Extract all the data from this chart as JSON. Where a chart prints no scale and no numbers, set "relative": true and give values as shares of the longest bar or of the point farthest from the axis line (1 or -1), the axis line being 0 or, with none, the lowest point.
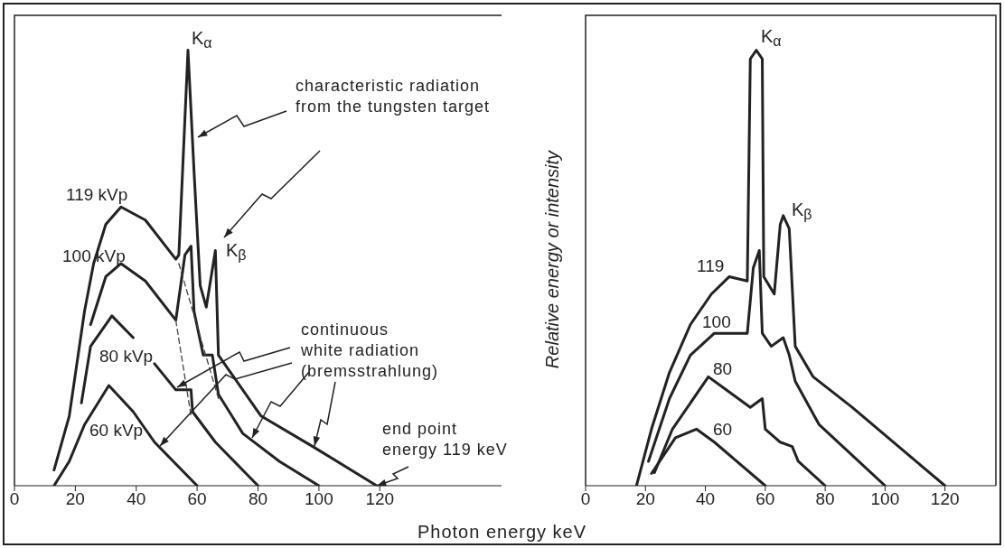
{
  "chart_data": [
    {
      "type": "line",
      "relative": true,
      "xlabel": "Photon energy keV",
      "xlim": [
        0,
        160
      ],
      "xticks": [
        0,
        20,
        40,
        60,
        80,
        100,
        120
      ],
      "series": [
        {
          "name": "119 kVp",
          "color": "#222222",
          "x": [
            13,
            18,
            23,
            26,
            30,
            35,
            43,
            53,
            54,
            57,
            59,
            61,
            63,
            66,
            67,
            71,
            81,
            98,
            119
          ],
          "values": [
            0.036,
            0.16,
            0.4,
            0.51,
            0.6,
            0.64,
            0.61,
            0.52,
            0.53,
            1.0,
            0.72,
            0.46,
            0.41,
            0.54,
            0.3,
            0.26,
            0.16,
            0.09,
            0
          ]
        },
        {
          "name": "100 kVp",
          "color": "#222222",
          "x": [
            25,
            30,
            35,
            43,
            53,
            56,
            58,
            59,
            62,
            65,
            67,
            75,
            87,
            100
          ],
          "values": [
            0.37,
            0.48,
            0.51,
            0.47,
            0.38,
            0.53,
            0.55,
            0.4,
            0.3,
            0.3,
            0.21,
            0.12,
            0.056,
            0
          ]
        },
        {
          "name": "80 kVp",
          "color": "#222222",
          "x": [
            22,
            25,
            32,
            39,
            42.5,
            46,
            53,
            58,
            58.5,
            66,
            80
          ],
          "values": [
            0.19,
            0.32,
            0.39,
            0.34,
            null,
            0.28,
            0.22,
            0.22,
            0.17,
            0.1,
            0
          ]
        },
        {
          "name": "60 kVp",
          "color": "#222222",
          "x": [
            13,
            18,
            23,
            31,
            39,
            46,
            60
          ],
          "values": [
            0,
            0.056,
            0.14,
            0.23,
            0.17,
            0.1,
            0
          ]
        },
        {
          "color": "#444444",
          "line_style": "dashed",
          "x": [
            54,
            67
          ],
          "values": [
            0.51,
            0.2
          ]
        },
        {
          "color": "#444444",
          "line_style": "dashed",
          "x": [
            53,
            58
          ],
          "values": [
            0.38,
            0.16
          ]
        }
      ],
      "annotations": [
        "K$_{α}$",
        "K$_{β}$",
        "characteristic radiation from the tungsten target",
        "continuous white radiation (bremsstrahlung)",
        "end point energy 119 keV"
      ]
    },
    {
      "type": "line",
      "relative": true,
      "ylabel": "Relative energy or intensity",
      "xlim": [
        0,
        137
      ],
      "xticks": [
        0,
        20,
        40,
        60,
        80,
        100,
        120
      ],
      "series": [
        {
          "name": "119",
          "color": "#222222",
          "x": [
            17,
            22,
            28,
            35,
            42,
            48,
            54,
            55,
            57,
            59,
            59.5,
            63,
            65,
            66,
            68,
            70,
            76,
            89,
            120
          ],
          "values": [
            0,
            0.13,
            0.26,
            0.37,
            0.44,
            0.48,
            0.47,
            0.98,
            1.0,
            0.98,
            0.48,
            0.44,
            0.6,
            0.62,
            0.59,
            0.32,
            0.25,
            0.18,
            0
          ]
        },
        {
          "name": "100",
          "color": "#222222",
          "x": [
            21,
            28,
            35,
            43,
            54,
            56,
            58,
            59,
            62,
            66,
            68,
            70,
            78,
            100
          ],
          "values": [
            0.056,
            0.2,
            0.3,
            0.35,
            0.35,
            0.5,
            0.54,
            0.35,
            0.32,
            0.34,
            0.3,
            0.24,
            0.14,
            0
          ]
        },
        {
          "name": "80",
          "color": "#222222",
          "x": [
            23,
            29,
            41,
            45,
            55,
            59,
            60,
            65,
            69,
            71,
            80
          ],
          "values": [
            0.03,
            0.13,
            0.25,
            0.23,
            0.18,
            0.2,
            0.13,
            0.1,
            0.09,
            0.056,
            0
          ]
        },
        {
          "name": "60",
          "color": "#222222",
          "x": [
            22,
            30,
            37,
            43,
            60
          ],
          "values": [
            0.028,
            0.11,
            0.13,
            0.1,
            0
          ]
        }
      ],
      "annotations": [
        "K$_{α}$",
        "K$_{β}$"
      ]
    }
  ]
}
